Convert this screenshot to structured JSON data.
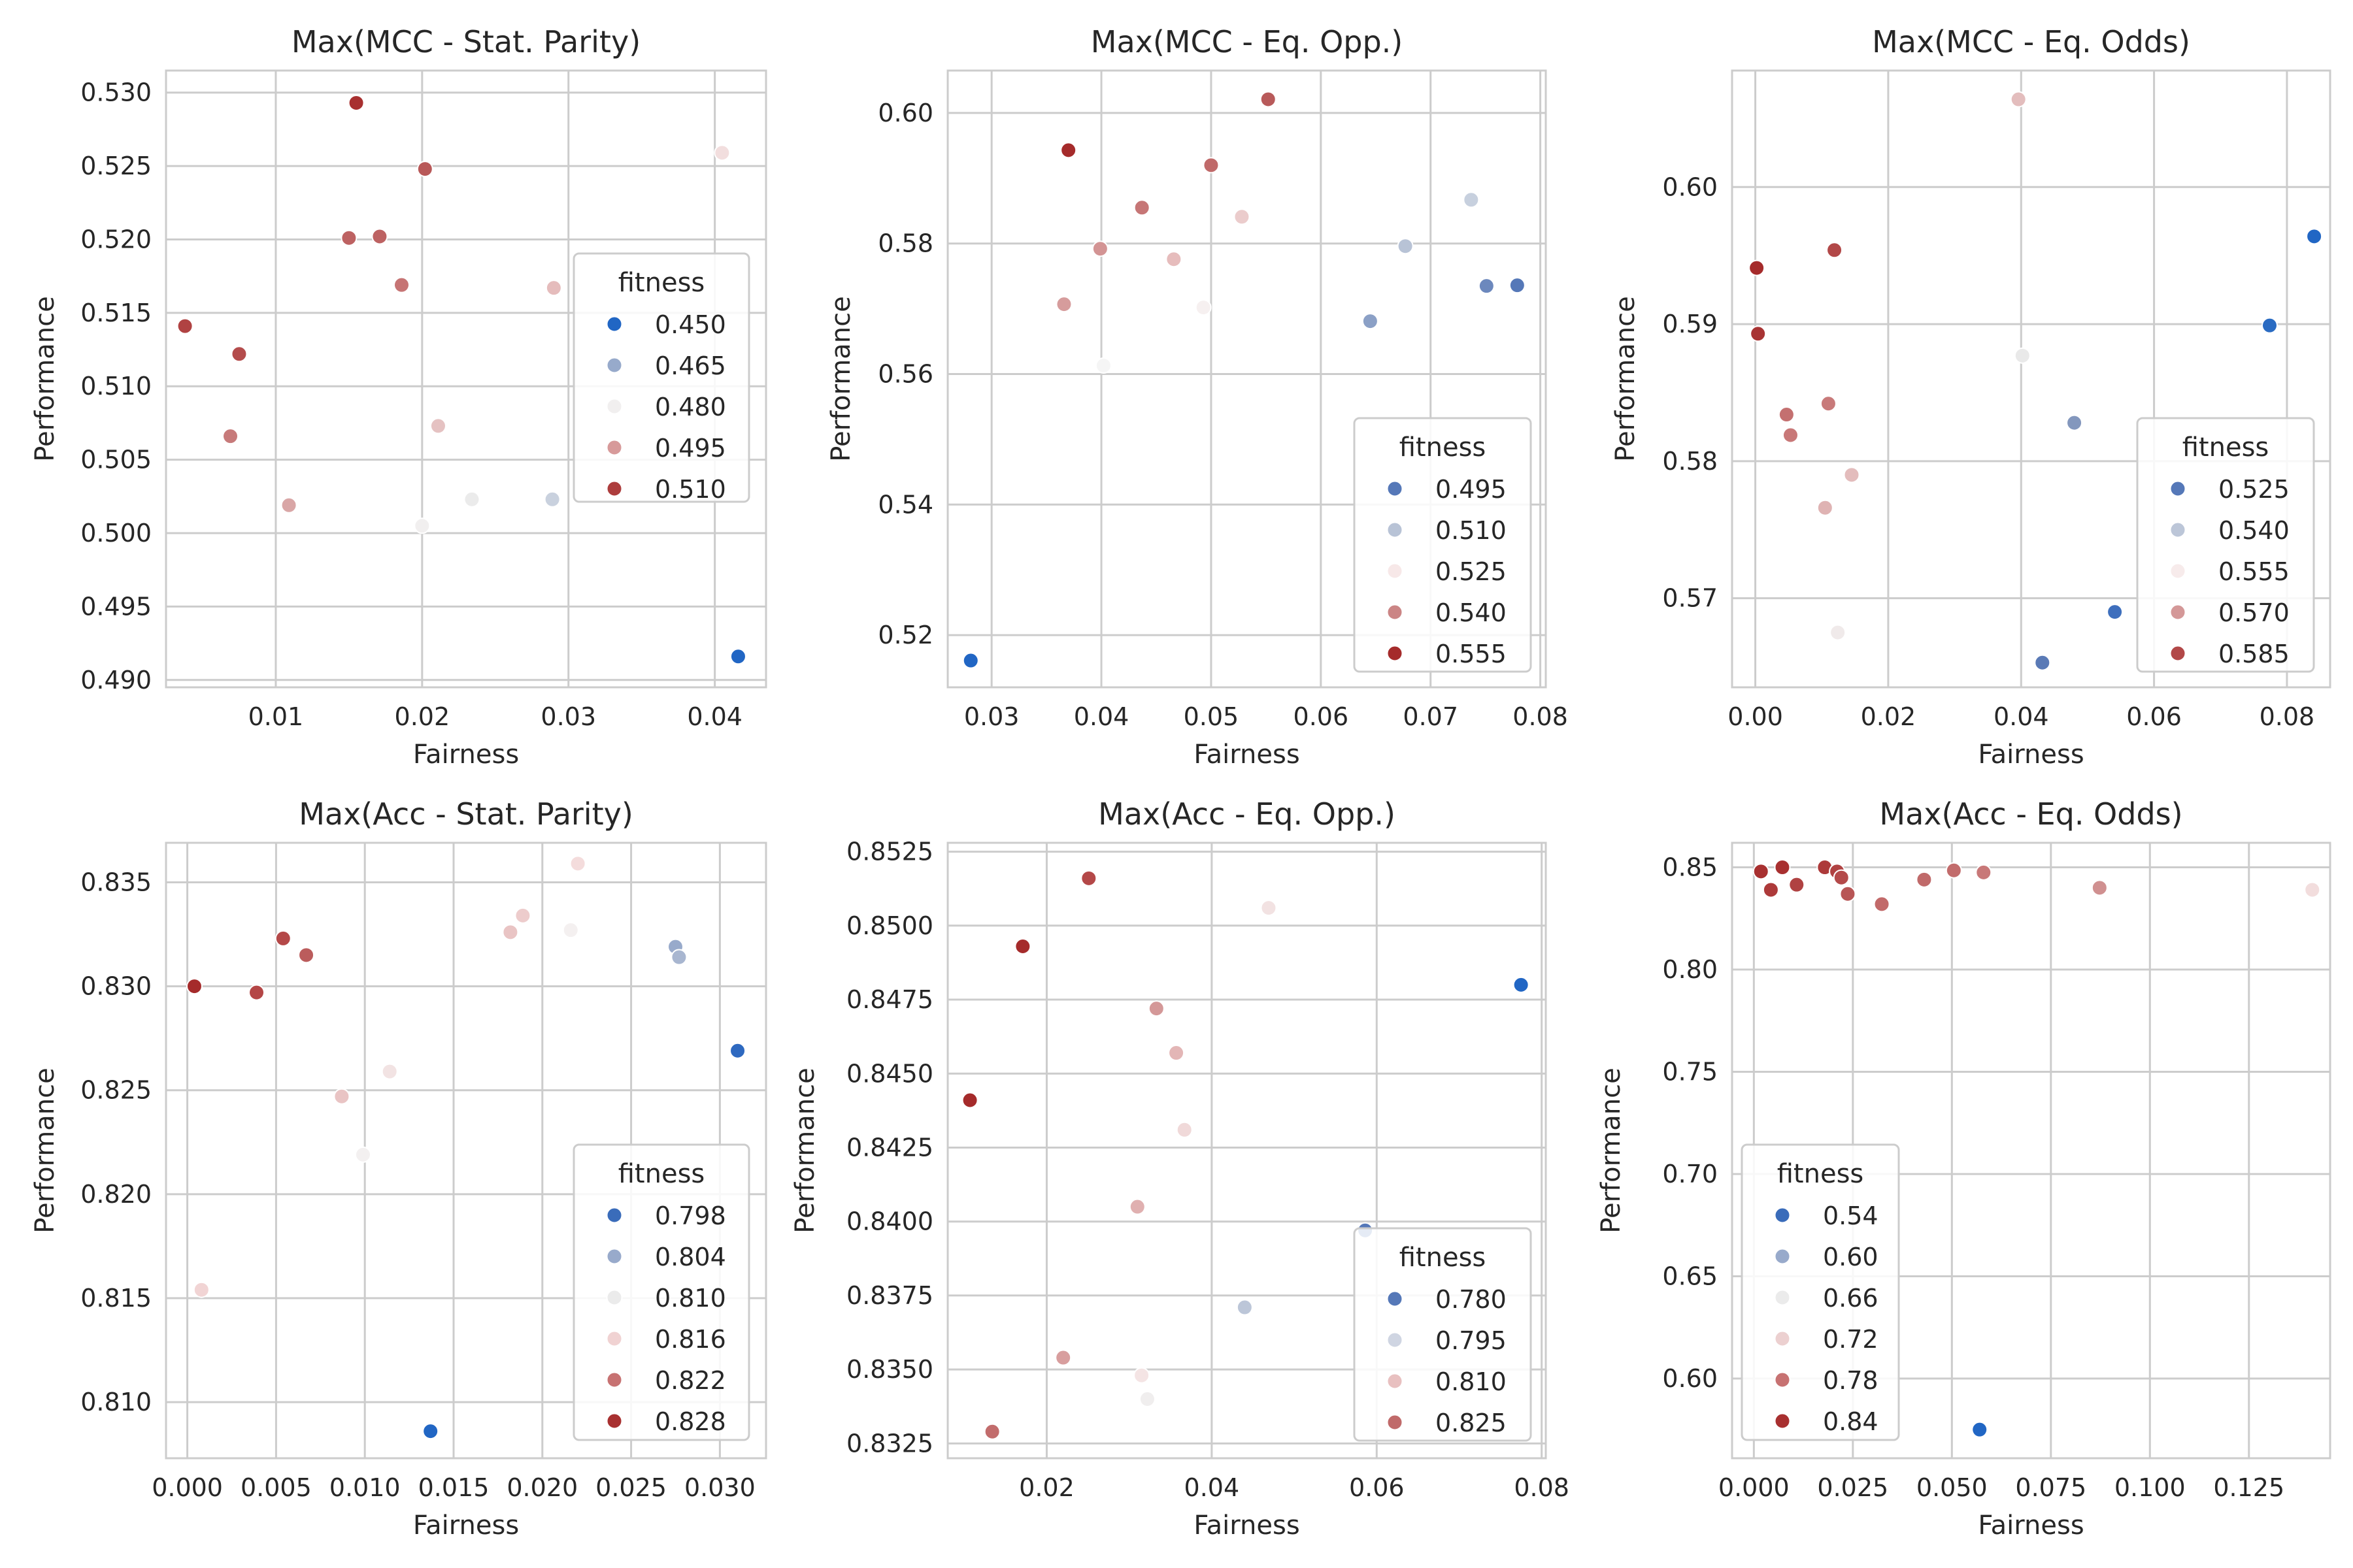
{
  "chart_data": [
    {
      "type": "scatter",
      "title": "Max(MCC - Stat. Parity)",
      "xlabel": "Fairness",
      "ylabel": "Performance",
      "xlim": [
        0.0025,
        0.0435
      ],
      "ylim": [
        0.4895,
        0.5315
      ],
      "xticks": [
        0.01,
        0.02,
        0.03,
        0.04
      ],
      "xtick_labels": [
        "0.01",
        "0.02",
        "0.03",
        "0.04"
      ],
      "yticks": [
        0.49,
        0.495,
        0.5,
        0.505,
        0.51,
        0.515,
        0.52,
        0.525,
        0.53
      ],
      "ytick_labels": [
        "0.490",
        "0.495",
        "0.500",
        "0.505",
        "0.510",
        "0.515",
        "0.520",
        "0.525",
        "0.530"
      ],
      "grid": true,
      "legend": {
        "title": "fitness",
        "placement": "center-right",
        "entries": [
          {
            "label": "0.450",
            "color": "#2166c4"
          },
          {
            "label": "0.465",
            "color": "#97aacb"
          },
          {
            "label": "0.480",
            "color": "#f1efef"
          },
          {
            "label": "0.495",
            "color": "#d79a9a"
          },
          {
            "label": "0.510",
            "color": "#ad3d3d"
          }
        ]
      },
      "points": [
        {
          "x": 0.0155,
          "y": 0.5293,
          "color": "#a83030"
        },
        {
          "x": 0.0202,
          "y": 0.5248,
          "color": "#b85858"
        },
        {
          "x": 0.0405,
          "y": 0.5259,
          "color": "#f2dede"
        },
        {
          "x": 0.015,
          "y": 0.5201,
          "color": "#bd6262"
        },
        {
          "x": 0.0171,
          "y": 0.5202,
          "color": "#bd6262"
        },
        {
          "x": 0.0186,
          "y": 0.5169,
          "color": "#c67474"
        },
        {
          "x": 0.029,
          "y": 0.5167,
          "color": "#e5bcbc"
        },
        {
          "x": 0.0038,
          "y": 0.5141,
          "color": "#b04242"
        },
        {
          "x": 0.0075,
          "y": 0.5122,
          "color": "#b44c4c"
        },
        {
          "x": 0.0211,
          "y": 0.5073,
          "color": "#e5c2c2"
        },
        {
          "x": 0.0069,
          "y": 0.5066,
          "color": "#c77a7a"
        },
        {
          "x": 0.0109,
          "y": 0.5019,
          "color": "#d9a6a6"
        },
        {
          "x": 0.0234,
          "y": 0.5023,
          "color": "#ebebeb"
        },
        {
          "x": 0.0289,
          "y": 0.5023,
          "color": "#c9d1de"
        },
        {
          "x": 0.02,
          "y": 0.5005,
          "color": "#f1efef"
        },
        {
          "x": 0.0416,
          "y": 0.4916,
          "color": "#2166c4"
        }
      ]
    },
    {
      "type": "scatter",
      "title": "Max(MCC - Eq. Opp.)",
      "xlabel": "Fairness",
      "ylabel": "Performance",
      "xlim": [
        0.026,
        0.0805
      ],
      "ylim": [
        0.512,
        0.6065
      ],
      "xticks": [
        0.03,
        0.04,
        0.05,
        0.06,
        0.07,
        0.08
      ],
      "xtick_labels": [
        "0.03",
        "0.04",
        "0.05",
        "0.06",
        "0.07",
        "0.08"
      ],
      "yticks": [
        0.52,
        0.54,
        0.56,
        0.58,
        0.6
      ],
      "ytick_labels": [
        "0.52",
        "0.54",
        "0.56",
        "0.58",
        "0.60"
      ],
      "grid": true,
      "legend": {
        "title": "fitness",
        "placement": "bottom-right",
        "entries": [
          {
            "label": "0.495",
            "color": "#5578b8"
          },
          {
            "label": "0.510",
            "color": "#b8c3d6"
          },
          {
            "label": "0.525",
            "color": "#f7e8e8"
          },
          {
            "label": "0.540",
            "color": "#cb8585"
          },
          {
            "label": "0.555",
            "color": "#a52b2b"
          }
        ]
      },
      "points": [
        {
          "x": 0.0552,
          "y": 0.6021,
          "color": "#b85a5a"
        },
        {
          "x": 0.037,
          "y": 0.5943,
          "color": "#a52b2b"
        },
        {
          "x": 0.05,
          "y": 0.592,
          "color": "#c06a6a"
        },
        {
          "x": 0.0737,
          "y": 0.5867,
          "color": "#c7d0de"
        },
        {
          "x": 0.0437,
          "y": 0.5855,
          "color": "#c67676"
        },
        {
          "x": 0.0528,
          "y": 0.5841,
          "color": "#ebcccc"
        },
        {
          "x": 0.0677,
          "y": 0.5796,
          "color": "#b8c3d6"
        },
        {
          "x": 0.0399,
          "y": 0.5792,
          "color": "#d39494"
        },
        {
          "x": 0.0466,
          "y": 0.5776,
          "color": "#e6bcbc"
        },
        {
          "x": 0.0751,
          "y": 0.5735,
          "color": "#6c88bd"
        },
        {
          "x": 0.0779,
          "y": 0.5736,
          "color": "#5578b8"
        },
        {
          "x": 0.0366,
          "y": 0.5707,
          "color": "#d69c9c"
        },
        {
          "x": 0.0493,
          "y": 0.5702,
          "color": "#f6f0f0"
        },
        {
          "x": 0.0645,
          "y": 0.5681,
          "color": "#8ba0c6"
        },
        {
          "x": 0.0402,
          "y": 0.5613,
          "color": "#f5f5f5"
        },
        {
          "x": 0.0281,
          "y": 0.5161,
          "color": "#2166c4"
        }
      ]
    },
    {
      "type": "scatter",
      "title": "Max(MCC - Eq. Odds)",
      "xlabel": "Fairness",
      "ylabel": "Performance",
      "xlim": [
        -0.0035,
        0.0865
      ],
      "ylim": [
        0.5635,
        0.6085
      ],
      "xticks": [
        0.0,
        0.02,
        0.04,
        0.06,
        0.08
      ],
      "xtick_labels": [
        "0.00",
        "0.02",
        "0.04",
        "0.06",
        "0.08"
      ],
      "yticks": [
        0.57,
        0.58,
        0.59,
        0.6
      ],
      "ytick_labels": [
        "0.57",
        "0.58",
        "0.59",
        "0.60"
      ],
      "grid": true,
      "legend": {
        "title": "fitness",
        "placement": "center-right",
        "entries": [
          {
            "label": "0.525",
            "color": "#5578b8"
          },
          {
            "label": "0.540",
            "color": "#bcc6d8"
          },
          {
            "label": "0.555",
            "color": "#f7ebeb"
          },
          {
            "label": "0.570",
            "color": "#d49898"
          },
          {
            "label": "0.585",
            "color": "#b24848"
          }
        ]
      },
      "points": [
        {
          "x": 0.0396,
          "y": 0.6064,
          "color": "#e3bdbd"
        },
        {
          "x": 0.0841,
          "y": 0.5964,
          "color": "#2166c4"
        },
        {
          "x": 0.0119,
          "y": 0.5954,
          "color": "#b24848"
        },
        {
          "x": 0.0002,
          "y": 0.5941,
          "color": "#a52b2b"
        },
        {
          "x": 0.0774,
          "y": 0.5899,
          "color": "#2a6bc2"
        },
        {
          "x": 0.0004,
          "y": 0.5893,
          "color": "#a83434"
        },
        {
          "x": 0.0402,
          "y": 0.5877,
          "color": "#e9e9e9"
        },
        {
          "x": 0.011,
          "y": 0.5842,
          "color": "#c87a7a"
        },
        {
          "x": 0.0047,
          "y": 0.5834,
          "color": "#c47070"
        },
        {
          "x": 0.048,
          "y": 0.5828,
          "color": "#8397bd"
        },
        {
          "x": 0.0053,
          "y": 0.5819,
          "color": "#c87878"
        },
        {
          "x": 0.0145,
          "y": 0.579,
          "color": "#e3bcbc"
        },
        {
          "x": 0.0105,
          "y": 0.5766,
          "color": "#dfb3b3"
        },
        {
          "x": 0.0124,
          "y": 0.5675,
          "color": "#f0eaea"
        },
        {
          "x": 0.0541,
          "y": 0.569,
          "color": "#3e6fbd"
        },
        {
          "x": 0.0432,
          "y": 0.5653,
          "color": "#5a7ab6"
        }
      ]
    },
    {
      "type": "scatter",
      "title": "Max(Acc - Stat. Parity)",
      "xlabel": "Fairness",
      "ylabel": "Performance",
      "xlim": [
        -0.0012,
        0.0326
      ],
      "ylim": [
        0.8073,
        0.8369
      ],
      "xticks": [
        0.0,
        0.005,
        0.01,
        0.015,
        0.02,
        0.025,
        0.03
      ],
      "xtick_labels": [
        "0.000",
        "0.005",
        "0.010",
        "0.015",
        "0.020",
        "0.025",
        "0.030"
      ],
      "yticks": [
        0.81,
        0.815,
        0.82,
        0.825,
        0.83,
        0.835
      ],
      "ytick_labels": [
        "0.810",
        "0.815",
        "0.820",
        "0.825",
        "0.830",
        "0.835"
      ],
      "grid": true,
      "legend": {
        "title": "fitness",
        "placement": "bottom-right",
        "entries": [
          {
            "label": "0.798",
            "color": "#3a6cba"
          },
          {
            "label": "0.804",
            "color": "#98aacb"
          },
          {
            "label": "0.810",
            "color": "#ebebeb"
          },
          {
            "label": "0.816",
            "color": "#f0d2d2"
          },
          {
            "label": "0.822",
            "color": "#c77272"
          },
          {
            "label": "0.828",
            "color": "#a83030"
          }
        ]
      },
      "points": [
        {
          "x": 0.022,
          "y": 0.8359,
          "color": "#f4dcdc"
        },
        {
          "x": 0.0189,
          "y": 0.8334,
          "color": "#edcccc"
        },
        {
          "x": 0.0182,
          "y": 0.8326,
          "color": "#e9c4c4"
        },
        {
          "x": 0.0216,
          "y": 0.8327,
          "color": "#f4f0f0"
        },
        {
          "x": 0.0054,
          "y": 0.8323,
          "color": "#b44848"
        },
        {
          "x": 0.0275,
          "y": 0.8319,
          "color": "#98aacb"
        },
        {
          "x": 0.0067,
          "y": 0.8315,
          "color": "#bb5c5c"
        },
        {
          "x": 0.0277,
          "y": 0.8314,
          "color": "#a8b6d0"
        },
        {
          "x": 0.0004,
          "y": 0.83,
          "color": "#a52b2b"
        },
        {
          "x": 0.0039,
          "y": 0.8297,
          "color": "#b44646"
        },
        {
          "x": 0.031,
          "y": 0.8269,
          "color": "#2e69c0"
        },
        {
          "x": 0.0114,
          "y": 0.8259,
          "color": "#f2e3e3"
        },
        {
          "x": 0.0087,
          "y": 0.8247,
          "color": "#e9c4c4"
        },
        {
          "x": 0.0099,
          "y": 0.8219,
          "color": "#f3f0f0"
        },
        {
          "x": 0.0008,
          "y": 0.8154,
          "color": "#f1d4d4"
        },
        {
          "x": 0.0137,
          "y": 0.8086,
          "color": "#2166c4"
        }
      ]
    },
    {
      "type": "scatter",
      "title": "Max(Acc - Eq. Opp.)",
      "xlabel": "Fairness",
      "ylabel": "Performance",
      "xlim": [
        0.008,
        0.0805
      ],
      "ylim": [
        0.832,
        0.8528
      ],
      "xticks": [
        0.02,
        0.04,
        0.06,
        0.08
      ],
      "xtick_labels": [
        "0.02",
        "0.04",
        "0.06",
        "0.08"
      ],
      "yticks": [
        0.8325,
        0.835,
        0.8375,
        0.84,
        0.8425,
        0.845,
        0.8475,
        0.85,
        0.8525
      ],
      "ytick_labels": [
        "0.8325",
        "0.8350",
        "0.8375",
        "0.8400",
        "0.8425",
        "0.8450",
        "0.8475",
        "0.8500",
        "0.8525"
      ],
      "grid": true,
      "legend": {
        "title": "fitness",
        "placement": "bottom-right",
        "entries": [
          {
            "label": "0.780",
            "color": "#5578b8"
          },
          {
            "label": "0.795",
            "color": "#cfd5e2"
          },
          {
            "label": "0.810",
            "color": "#e8c0c0"
          },
          {
            "label": "0.825",
            "color": "#c06a6a"
          }
        ]
      },
      "points": [
        {
          "x": 0.0251,
          "y": 0.8516,
          "color": "#b44848"
        },
        {
          "x": 0.0469,
          "y": 0.8506,
          "color": "#f2e2e2"
        },
        {
          "x": 0.0171,
          "y": 0.8493,
          "color": "#a52b2b"
        },
        {
          "x": 0.0775,
          "y": 0.848,
          "color": "#2166c4"
        },
        {
          "x": 0.0333,
          "y": 0.8472,
          "color": "#d49898"
        },
        {
          "x": 0.0357,
          "y": 0.8457,
          "color": "#e3b6b6"
        },
        {
          "x": 0.0367,
          "y": 0.8431,
          "color": "#f0d9d9"
        },
        {
          "x": 0.0107,
          "y": 0.8441,
          "color": "#a52b2b"
        },
        {
          "x": 0.031,
          "y": 0.8405,
          "color": "#e0b0b0"
        },
        {
          "x": 0.0586,
          "y": 0.8397,
          "color": "#5578b8"
        },
        {
          "x": 0.044,
          "y": 0.8371,
          "color": "#bcc6d8"
        },
        {
          "x": 0.022,
          "y": 0.8354,
          "color": "#d89e9e"
        },
        {
          "x": 0.0315,
          "y": 0.8348,
          "color": "#f4e4e4"
        },
        {
          "x": 0.0322,
          "y": 0.834,
          "color": "#f0eeee"
        },
        {
          "x": 0.0134,
          "y": 0.8329,
          "color": "#c26c6c"
        }
      ]
    },
    {
      "type": "scatter",
      "title": "Max(Acc - Eq. Odds)",
      "xlabel": "Fairness",
      "ylabel": "Performance",
      "xlim": [
        -0.0055,
        0.1455
      ],
      "ylim": [
        0.561,
        0.862
      ],
      "xticks": [
        0.0,
        0.025,
        0.05,
        0.075,
        0.1,
        0.125
      ],
      "xtick_labels": [
        "0.000",
        "0.025",
        "0.050",
        "0.075",
        "0.100",
        "0.125"
      ],
      "yticks": [
        0.6,
        0.65,
        0.7,
        0.75,
        0.8,
        0.85
      ],
      "ytick_labels": [
        "0.60",
        "0.65",
        "0.70",
        "0.75",
        "0.80",
        "0.85"
      ],
      "grid": true,
      "legend": {
        "title": "fitness",
        "placement": "bottom-left",
        "entries": [
          {
            "label": "0.54",
            "color": "#3a6cba"
          },
          {
            "label": "0.60",
            "color": "#98aacb"
          },
          {
            "label": "0.66",
            "color": "#ebebeb"
          },
          {
            "label": "0.72",
            "color": "#ecd0d0"
          },
          {
            "label": "0.78",
            "color": "#c77272"
          },
          {
            "label": "0.84",
            "color": "#a83030"
          }
        ]
      },
      "points": [
        {
          "x": 0.0018,
          "y": 0.848,
          "color": "#a83030"
        },
        {
          "x": 0.0072,
          "y": 0.85,
          "color": "#a83030"
        },
        {
          "x": 0.0043,
          "y": 0.839,
          "color": "#ad3a3a"
        },
        {
          "x": 0.0108,
          "y": 0.8415,
          "color": "#b04242"
        },
        {
          "x": 0.0179,
          "y": 0.85,
          "color": "#ad3a3a"
        },
        {
          "x": 0.021,
          "y": 0.848,
          "color": "#b04242"
        },
        {
          "x": 0.0221,
          "y": 0.845,
          "color": "#b44a4a"
        },
        {
          "x": 0.0237,
          "y": 0.837,
          "color": "#b85656"
        },
        {
          "x": 0.0323,
          "y": 0.832,
          "color": "#c26a6a"
        },
        {
          "x": 0.043,
          "y": 0.844,
          "color": "#c06a6a"
        },
        {
          "x": 0.0505,
          "y": 0.8485,
          "color": "#c26c6c"
        },
        {
          "x": 0.058,
          "y": 0.8475,
          "color": "#c87878"
        },
        {
          "x": 0.0873,
          "y": 0.84,
          "color": "#d09090"
        },
        {
          "x": 0.141,
          "y": 0.839,
          "color": "#f2dddd"
        },
        {
          "x": 0.057,
          "y": 0.575,
          "color": "#2166c4"
        }
      ]
    }
  ]
}
